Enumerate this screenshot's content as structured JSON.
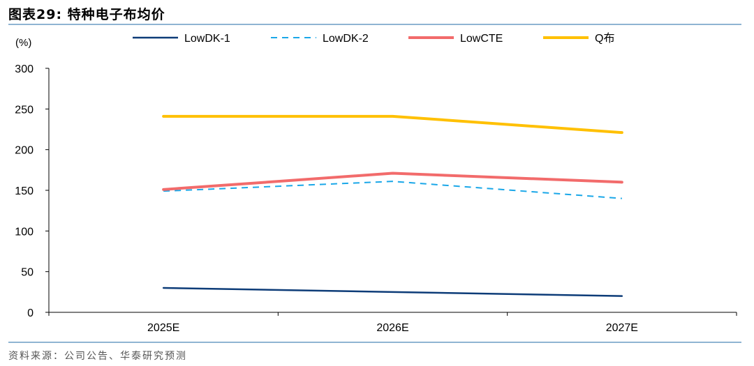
{
  "figure": {
    "title": "图表29:  特种电子布均价",
    "source": "资料来源：公司公告、华泰研究预测"
  },
  "colors": {
    "LowDK-1": "#0d3c78",
    "LowDK-2": "#1aa7e8",
    "LowCTE": "#f26b6b",
    "Q布": "#ffc000",
    "rule": "#8fb4d2"
  },
  "chart_data": {
    "type": "line",
    "title": "特种电子布均价",
    "ylabel": "(%)",
    "xlabel": "",
    "categories": [
      "2025E",
      "2026E",
      "2027E"
    ],
    "ylim": [
      0,
      300
    ],
    "yticks": [
      0,
      50,
      100,
      150,
      200,
      250,
      300
    ],
    "legend_position": "top",
    "grid": false,
    "series": [
      {
        "name": "LowDK-1",
        "values": [
          30,
          25,
          20
        ],
        "style": "solid"
      },
      {
        "name": "LowDK-2",
        "values": [
          149,
          161,
          140
        ],
        "style": "dashed"
      },
      {
        "name": "LowCTE",
        "values": [
          151,
          171,
          160
        ],
        "style": "solid"
      },
      {
        "name": "Q布",
        "values": [
          241,
          241,
          221
        ],
        "style": "solid"
      }
    ]
  }
}
